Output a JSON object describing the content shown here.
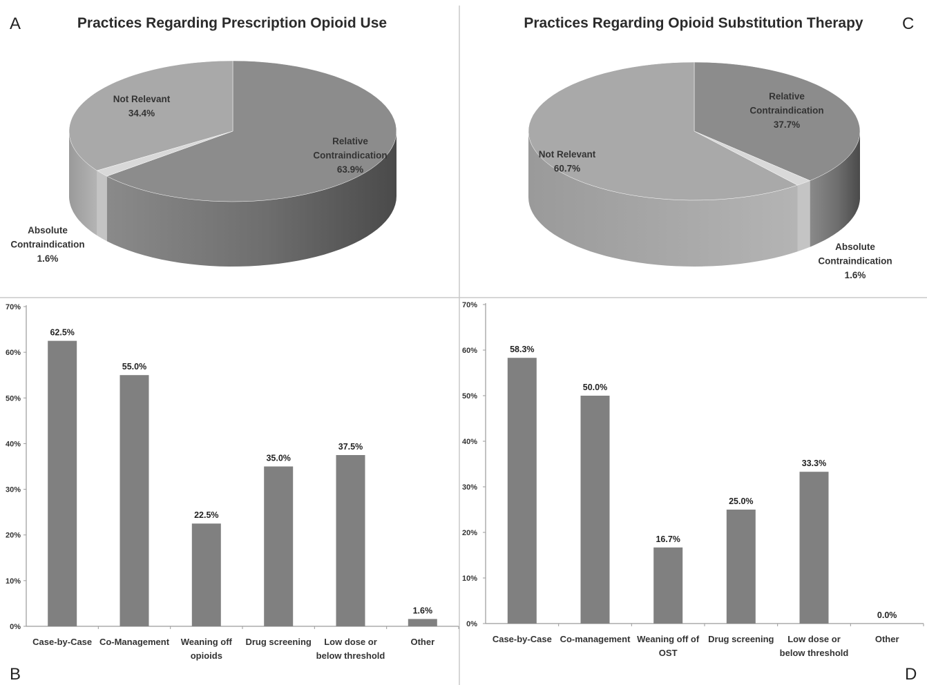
{
  "panels": {
    "a_letter": "A",
    "b_letter": "B",
    "c_letter": "C",
    "d_letter": "D"
  },
  "chart_data": [
    {
      "panel": "A",
      "type": "pie",
      "title": "Practices Regarding Prescription Opioid Use",
      "slices": [
        {
          "label_lines": [
            "Relative",
            "Contraindication"
          ],
          "value_text": "63.9%",
          "value": 63.9,
          "color": "#8c8c8c"
        },
        {
          "label_lines": [
            "Absolute",
            "Contraindication"
          ],
          "value_text": "1.6%",
          "value": 1.6,
          "color": "#d9d9d9"
        },
        {
          "label_lines": [
            "Not Relevant"
          ],
          "value_text": "34.4%",
          "value": 34.4,
          "color": "#a9a9a9"
        }
      ]
    },
    {
      "panel": "C",
      "type": "pie",
      "title": "Practices Regarding Opioid Substitution Therapy",
      "slices": [
        {
          "label_lines": [
            "Relative",
            "Contraindication"
          ],
          "value_text": "37.7%",
          "value": 37.7,
          "color": "#8c8c8c"
        },
        {
          "label_lines": [
            "Absolute",
            "Contraindication"
          ],
          "value_text": "1.6%",
          "value": 1.6,
          "color": "#d9d9d9"
        },
        {
          "label_lines": [
            "Not Relevant"
          ],
          "value_text": "60.7%",
          "value": 60.7,
          "color": "#a9a9a9"
        }
      ]
    },
    {
      "panel": "B",
      "type": "bar",
      "categories": [
        [
          "Case-by-Case"
        ],
        [
          "Co-Management"
        ],
        [
          "Weaning off",
          "opioids"
        ],
        [
          "Drug screening"
        ],
        [
          "Low dose or",
          "below threshold"
        ],
        [
          "Other"
        ]
      ],
      "values": [
        62.5,
        55.0,
        22.5,
        35.0,
        37.5,
        1.6
      ],
      "value_labels": [
        "62.5%",
        "55.0%",
        "22.5%",
        "35.0%",
        "37.5%",
        "1.6%"
      ],
      "yticks": [
        "0%",
        "10%",
        "20%",
        "30%",
        "40%",
        "50%",
        "60%",
        "70%"
      ],
      "ylim": [
        0,
        70
      ],
      "bar_color": "#808080"
    },
    {
      "panel": "D",
      "type": "bar",
      "categories": [
        [
          "Case-by-Case"
        ],
        [
          "Co-management"
        ],
        [
          "Weaning off of",
          "OST"
        ],
        [
          "Drug screening"
        ],
        [
          "Low dose or",
          "below threshold"
        ],
        [
          "Other"
        ]
      ],
      "values": [
        58.3,
        50.0,
        16.7,
        25.0,
        33.3,
        0.0
      ],
      "value_labels": [
        "58.3%",
        "50.0%",
        "16.7%",
        "25.0%",
        "33.3%",
        "0.0%"
      ],
      "yticks": [
        "0%",
        "10%",
        "20%",
        "30%",
        "40%",
        "50%",
        "60%",
        "70%"
      ],
      "ylim": [
        0,
        70
      ],
      "bar_color": "#808080"
    }
  ]
}
